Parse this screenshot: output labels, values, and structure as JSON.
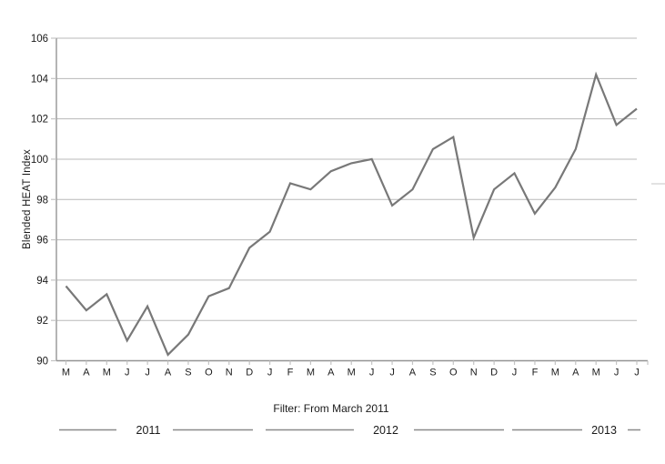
{
  "page": {
    "background": "#ffffff"
  },
  "filter_label": "Filter: From March 2011",
  "chart_data": {
    "type": "line",
    "title": "",
    "xlabel": "",
    "ylabel": "Blended HEAT Index",
    "ylim": [
      90,
      106
    ],
    "y_ticks": [
      90,
      92,
      94,
      96,
      98,
      100,
      102,
      104,
      106
    ],
    "grid": true,
    "legend": "none",
    "x_tick_labels": [
      "M",
      "A",
      "M",
      "J",
      "J",
      "A",
      "S",
      "O",
      "N",
      "D",
      "J",
      "F",
      "M",
      "A",
      "M",
      "J",
      "J",
      "A",
      "S",
      "O",
      "N",
      "D",
      "J",
      "F",
      "M",
      "A",
      "M",
      "J",
      "J"
    ],
    "x_months": [
      "2011-03",
      "2011-04",
      "2011-05",
      "2011-06",
      "2011-07",
      "2011-08",
      "2011-09",
      "2011-10",
      "2011-11",
      "2011-12",
      "2012-01",
      "2012-02",
      "2012-03",
      "2012-04",
      "2012-05",
      "2012-06",
      "2012-07",
      "2012-08",
      "2012-09",
      "2012-10",
      "2012-11",
      "2012-12",
      "2013-01",
      "2013-02",
      "2013-03",
      "2013-04",
      "2013-05",
      "2013-06",
      "2013-07"
    ],
    "series": [
      {
        "name": "Blended HEAT Index",
        "values": [
          93.7,
          92.5,
          93.3,
          91.0,
          92.7,
          90.3,
          91.3,
          93.2,
          93.6,
          95.6,
          96.4,
          98.8,
          98.5,
          99.4,
          99.8,
          100.0,
          97.7,
          98.5,
          100.5,
          101.1,
          96.1,
          98.5,
          99.3,
          97.3,
          98.6,
          100.5,
          104.2,
          101.7,
          102.5
        ]
      }
    ],
    "year_groups": [
      {
        "label": "2011",
        "start": 0,
        "end": 9
      },
      {
        "label": "2012",
        "start": 10,
        "end": 21
      },
      {
        "label": "2013",
        "start": 22,
        "end": 28
      }
    ],
    "colors": {
      "line": "#787878",
      "grid": "#b8b8b8",
      "axis": "#949494",
      "tick": "#c4c4c4",
      "text": "#1a1a1a",
      "year_line": "#8a8a8a"
    }
  }
}
